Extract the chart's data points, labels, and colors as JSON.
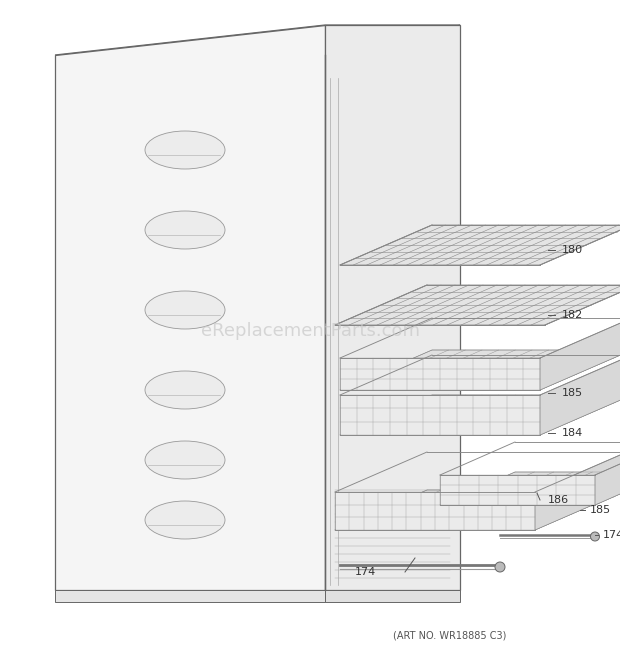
{
  "background_color": "#ffffff",
  "watermark_text": "eReplacementParts.com",
  "watermark_color": "#c8c8c8",
  "watermark_fontsize": 13,
  "art_no_text": "(ART NO. WR18885 C3)",
  "art_no_fontsize": 7,
  "line_color": "#666666",
  "shelf_color": "#999999",
  "fill_light": "#f0f0f0",
  "fill_med": "#e0e0e0",
  "fill_dark": "#d0d0d0"
}
